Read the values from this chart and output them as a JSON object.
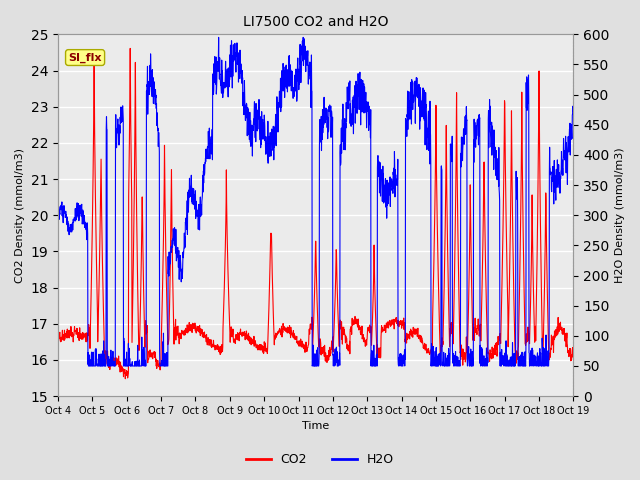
{
  "title": "LI7500 CO2 and H2O",
  "xlabel": "Time",
  "ylabel_left": "CO2 Density (mmol/m3)",
  "ylabel_right": "H2O Density (mmol/m3)",
  "co2_color": "#FF0000",
  "h2o_color": "#0000FF",
  "ylim_left": [
    15.0,
    25.0
  ],
  "ylim_right": [
    0,
    600
  ],
  "yticks_left": [
    15.0,
    16.0,
    17.0,
    18.0,
    19.0,
    20.0,
    21.0,
    22.0,
    23.0,
    24.0,
    25.0
  ],
  "yticks_right": [
    0,
    50,
    100,
    150,
    200,
    250,
    300,
    350,
    400,
    450,
    500,
    550,
    600
  ],
  "xtick_labels": [
    "Oct 4",
    "Oct 5",
    "Oct 6",
    "Oct 7",
    "Oct 8",
    "Oct 9",
    "Oct 10",
    "Oct 11",
    "Oct 12",
    "Oct 13",
    "Oct 14",
    "Oct 15",
    "Oct 16",
    "Oct 17",
    "Oct 18",
    "Oct 19"
  ],
  "annotation_text": "SI_flx",
  "background_color": "#E0E0E0",
  "plot_bg_color": "#EBEBEB",
  "grid_color": "#FFFFFF",
  "line_width": 0.8,
  "n_points": 2000
}
